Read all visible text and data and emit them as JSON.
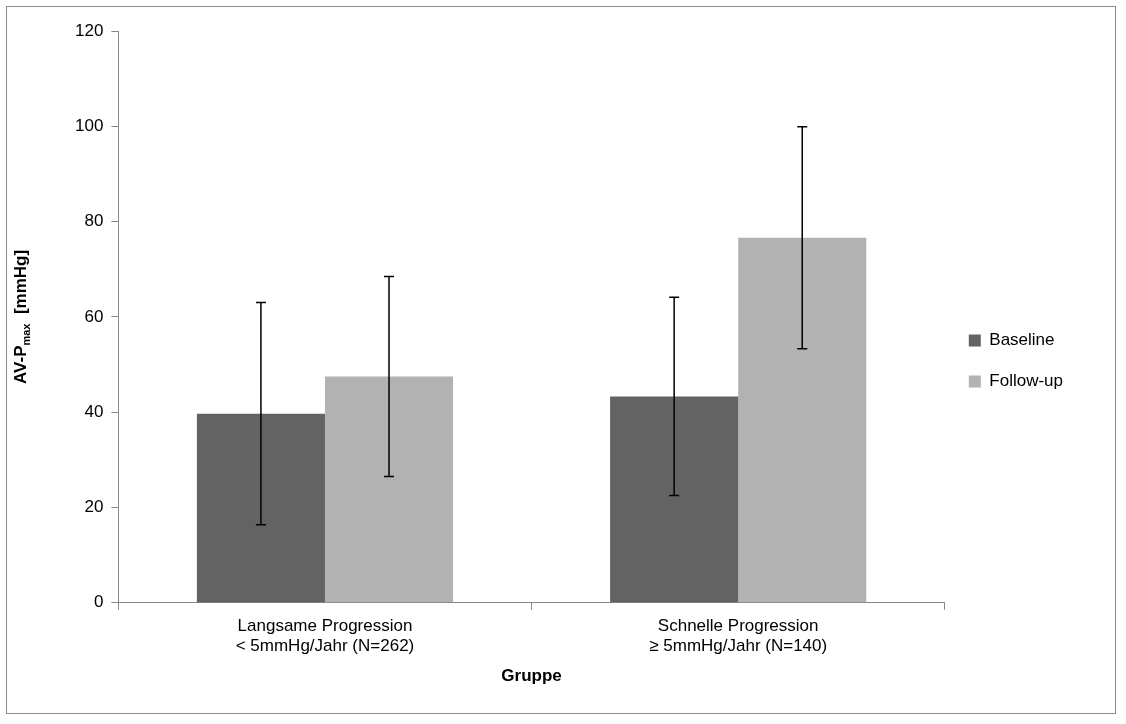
{
  "chart_data": {
    "type": "bar",
    "xlabel": "Gruppe",
    "ylabel": "AV-P$_{max}$  [mmHg]",
    "categories": [
      "Langsame Progression\n< 5mmHg/Jahr (N=262)",
      "Schnelle Progression\n≥ 5mmHg/Jahr (N=140)"
    ],
    "series": [
      {
        "name": "Baseline",
        "color": "#636363",
        "values": [
          39.7,
          43.3
        ],
        "errors": [
          23.3,
          20.8
        ]
      },
      {
        "name": "Follow-up",
        "color": "#b2b2b2",
        "values": [
          47.5,
          76.6
        ],
        "errors": [
          21,
          23.3
        ]
      }
    ],
    "ylim": [
      0,
      120
    ],
    "yticks": [
      0,
      20,
      40,
      60,
      80,
      100,
      120
    ],
    "grid": false,
    "legend": "right"
  }
}
